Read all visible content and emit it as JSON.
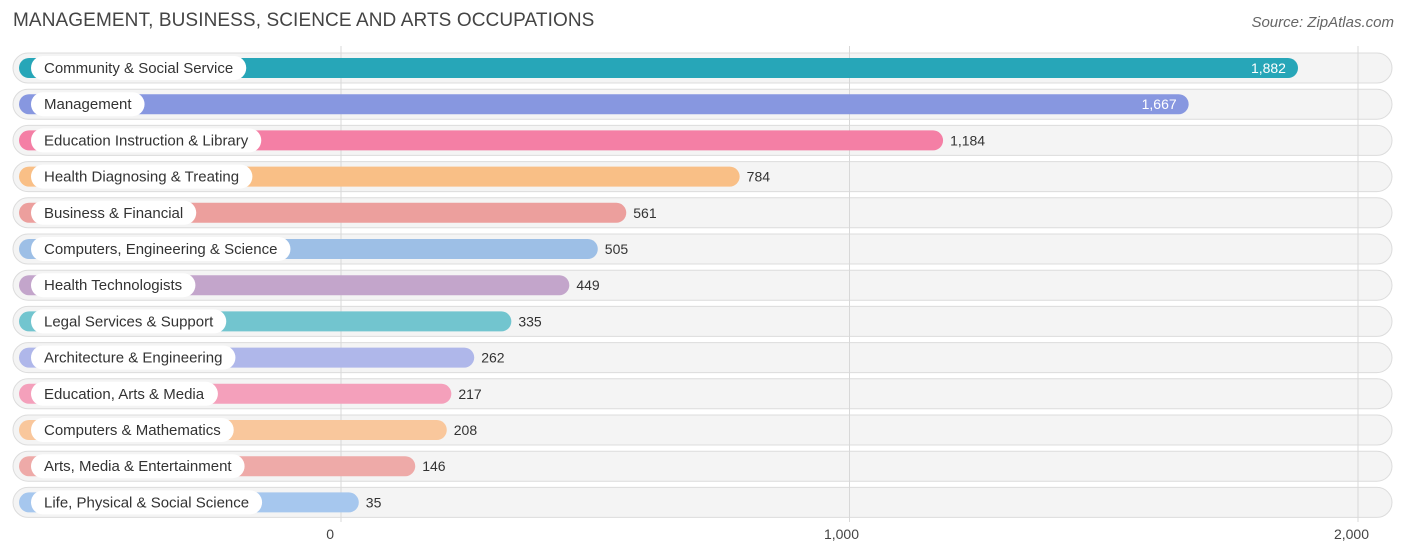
{
  "title": "MANAGEMENT, BUSINESS, SCIENCE AND ARTS OCCUPATIONS",
  "source": "Source: ZipAtlas.com",
  "chart_data": {
    "type": "bar",
    "orientation": "horizontal",
    "title": "MANAGEMENT, BUSINESS, SCIENCE AND ARTS OCCUPATIONS",
    "xlim": [
      0,
      2000
    ],
    "ticks": [
      {
        "value": 0,
        "label": "0"
      },
      {
        "value": 1000,
        "label": "1,000"
      },
      {
        "value": 2000,
        "label": "2,000"
      }
    ],
    "grid": true,
    "categories": [
      "Community & Social Service",
      "Management",
      "Education Instruction & Library",
      "Health Diagnosing & Treating",
      "Business & Financial",
      "Computers, Engineering & Science",
      "Health Technologists",
      "Legal Services & Support",
      "Architecture & Engineering",
      "Education, Arts & Media",
      "Computers & Mathematics",
      "Arts, Media & Entertainment",
      "Life, Physical & Social Science"
    ],
    "values": [
      1882,
      1667,
      1184,
      784,
      561,
      505,
      449,
      335,
      262,
      217,
      208,
      146,
      35
    ],
    "value_labels": [
      "1,882",
      "1,667",
      "1,184",
      "784",
      "561",
      "505",
      "449",
      "335",
      "262",
      "217",
      "208",
      "146",
      "35"
    ],
    "colors": [
      "#27a6b8",
      "#8797e0",
      "#f47fa5",
      "#f9bf86",
      "#ec9f9d",
      "#9dbfe6",
      "#c3a5cb",
      "#72c5cf",
      "#afb7ea",
      "#f4a0bb",
      "#f9c79c",
      "#eeaaa8",
      "#a6c7ee"
    ]
  }
}
